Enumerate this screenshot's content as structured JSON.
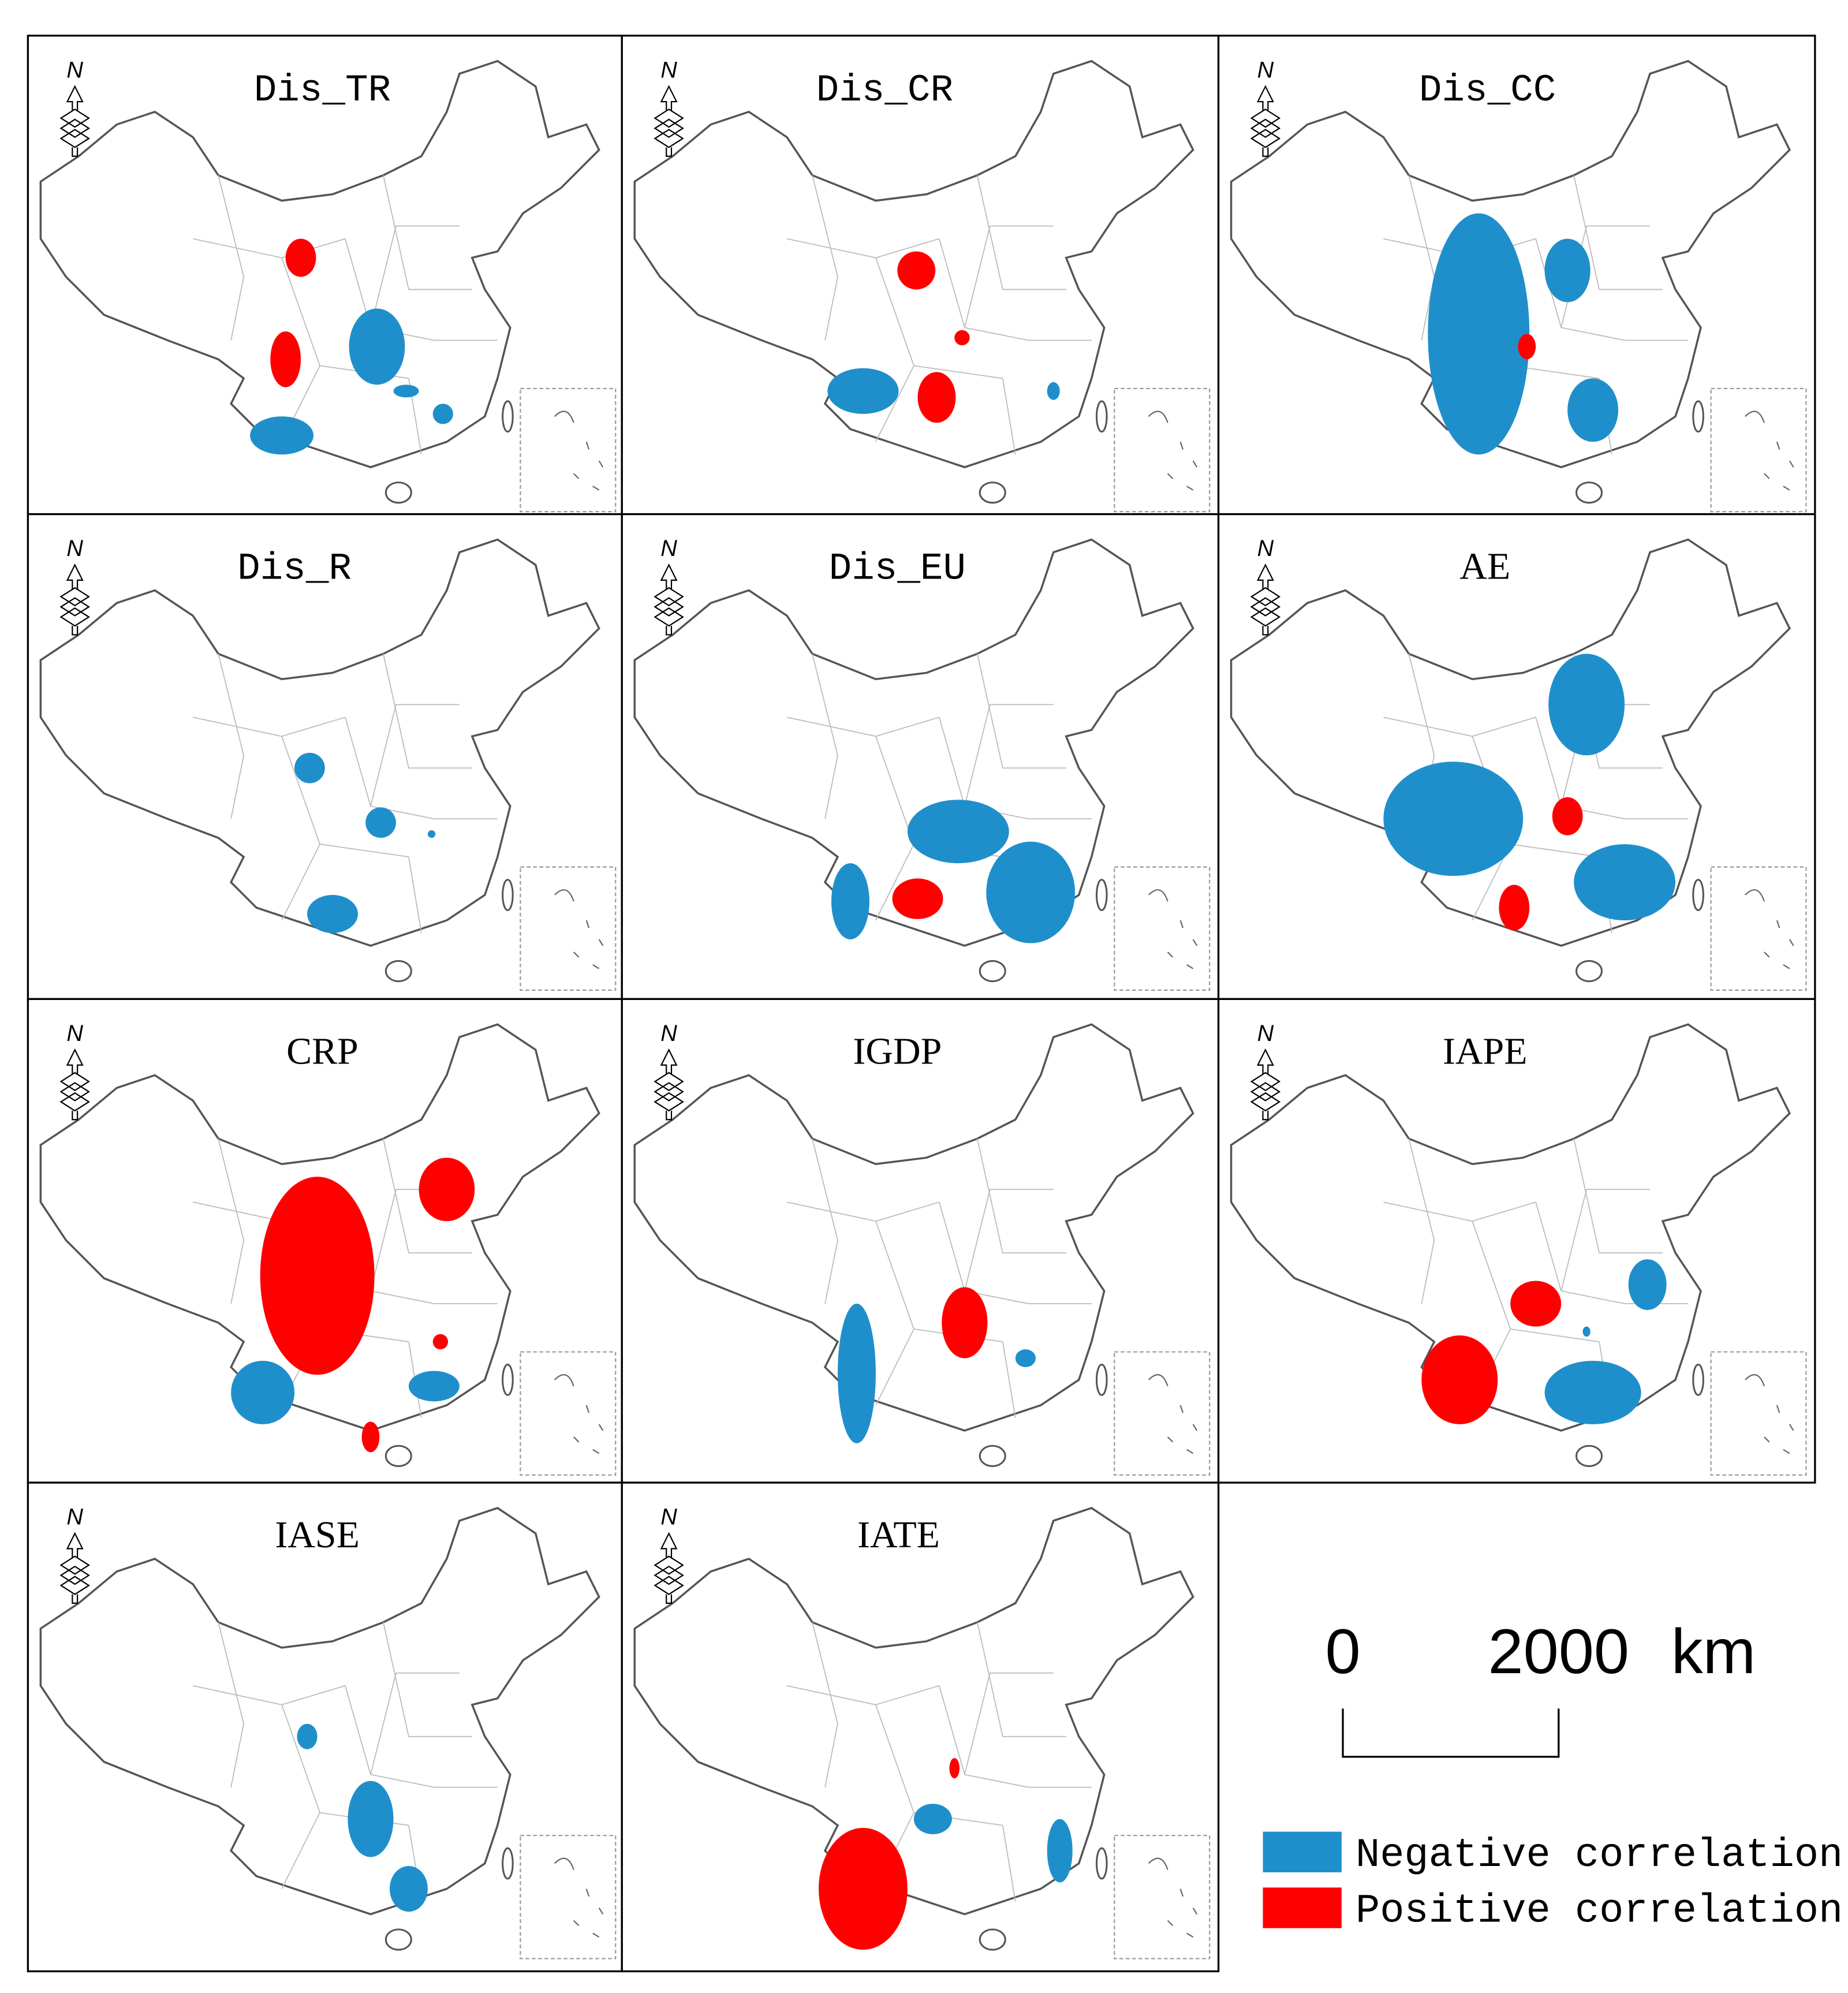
{
  "north_label": "N",
  "panels": [
    {
      "title": "Dis_TR"
    },
    {
      "title": "Dis_CR"
    },
    {
      "title": "Dis_CC"
    },
    {
      "title": "Dis_R"
    },
    {
      "title": "Dis_EU"
    },
    {
      "title": "AE"
    },
    {
      "title": "CRP"
    },
    {
      "title": "IGDP"
    },
    {
      "title": "IAPE"
    },
    {
      "title": "IASE"
    },
    {
      "title": "IATE"
    }
  ],
  "scale_bar": {
    "start": 0,
    "end": 2000,
    "unit": "km"
  },
  "legend": [
    {
      "label": "Negative correlation",
      "color": "#1f8fcc"
    },
    {
      "label": "Positive correlation",
      "color": "#ff0000"
    }
  ]
}
